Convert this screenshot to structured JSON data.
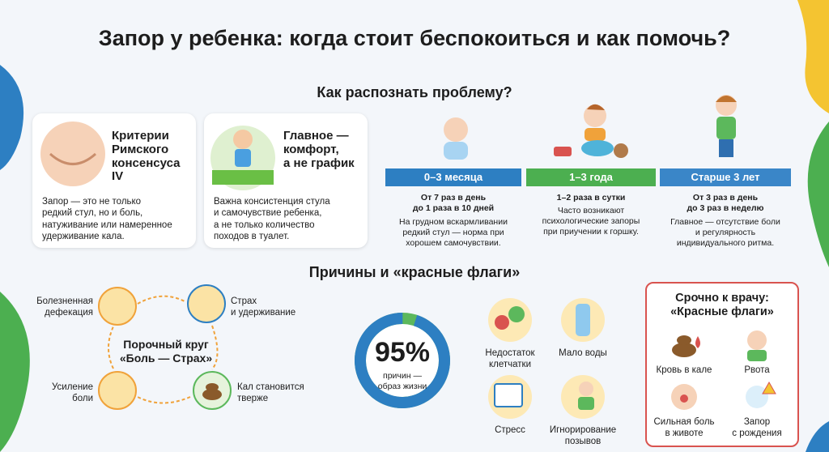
{
  "title": "Запор у ребенка: когда стоит беспокоиться и как помочь?",
  "recognize": {
    "heading": "Как распознать проблему?",
    "cards": [
      {
        "title": "Критерии\nРимского\nконсенсуса\nIV",
        "text": "Запор — это не только\nредкий стул, но и боль,\nнатуживание или намеренное\nудерживание кала."
      },
      {
        "title": "Главное —\nкомфорт,\nа не график",
        "text": "Важна консистенция стула\nи самочувствие ребенка,\nа не только количество\nпоходов в туалет."
      }
    ],
    "ages": [
      {
        "label": "0–3 месяца",
        "norm": "От 7 раз в день\nдо 1 раза в 10 дней",
        "note": "На грудном вскармливании\nредкий стул — норма при\nхорошем самочувствии."
      },
      {
        "label": "1–3 года",
        "norm": "1–2 раза в сутки",
        "note": "Часто возникают\nпсихологические запоры\nпри приучении к горшку."
      },
      {
        "label": "Старше 3 лет",
        "norm": "От 3 раз в день\nдо 3 раз в неделю",
        "note": "Главное — отсутствие боли\nи регулярность\nиндивидуального ритма."
      }
    ]
  },
  "causes": {
    "heading": "Причины и «красные флаги»",
    "cycle": {
      "title": "Порочный круг\n«Боль — Страх»",
      "steps": [
        "Болезненная\nдефекация",
        "Страх\nи удерживание",
        "Кал становится\nтверже",
        "Усиление\nболи"
      ]
    },
    "stat": {
      "value": 95,
      "label": "95%",
      "caption": "причин —\nобраз жизни"
    },
    "factors": [
      "Недостаток\nклетчатки",
      "Мало воды",
      "Стресс",
      "Игнорирование\nпозывов"
    ]
  },
  "red_flags": {
    "title": "Срочно к врачу:\n«Красные флаги»",
    "items": [
      "Кровь в кале",
      "Рвота",
      "Сильная боль\nв животе",
      "Запор\nс рождения"
    ]
  }
}
